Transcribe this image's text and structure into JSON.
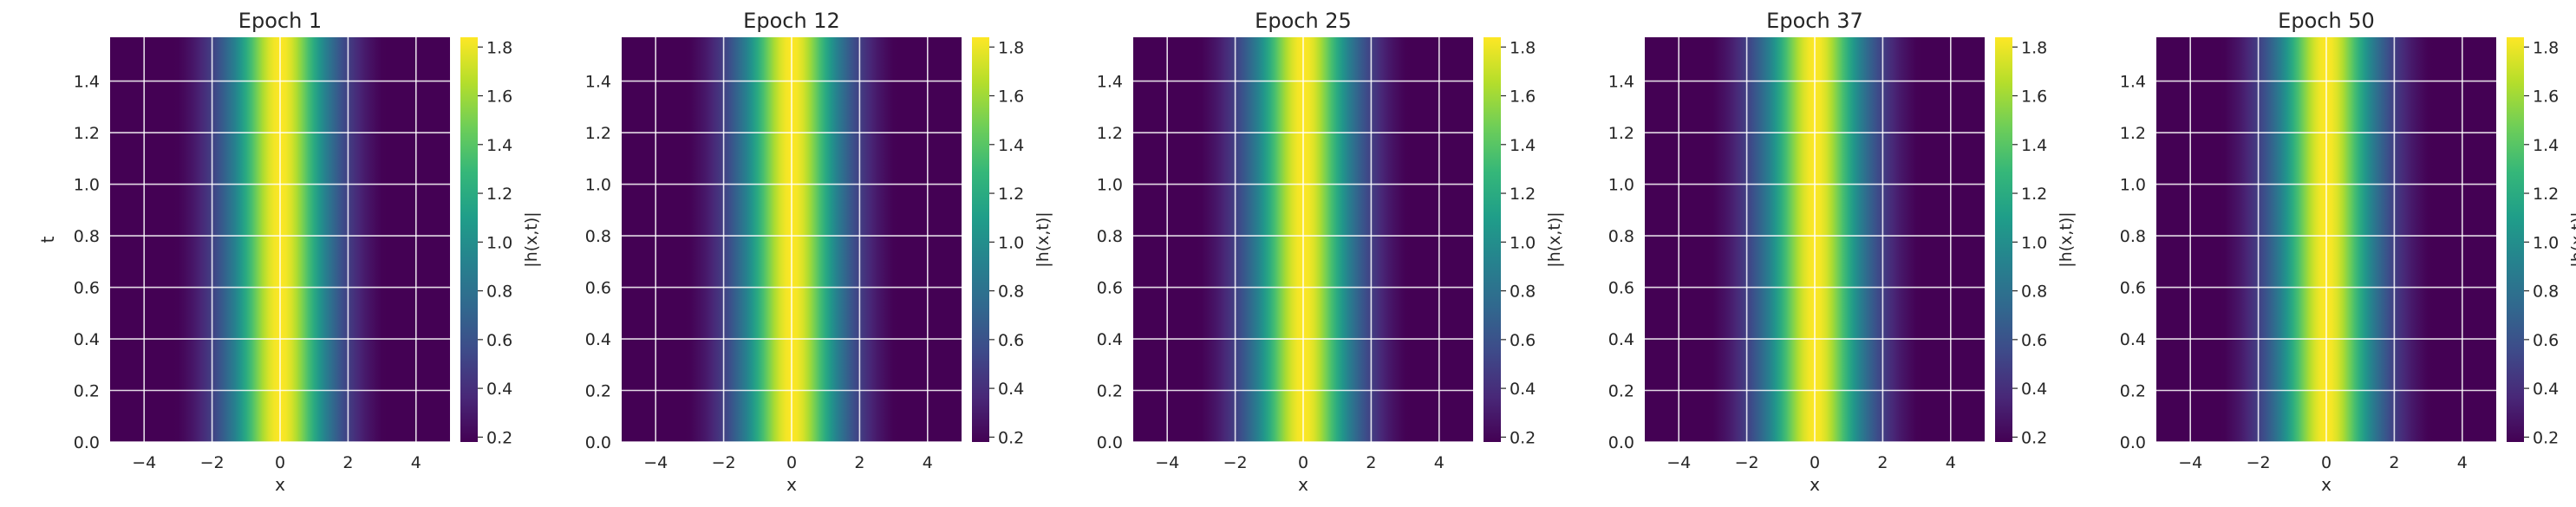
{
  "chart_data": [
    {
      "type": "heatmap",
      "title": "Epoch 1",
      "xlabel": "x",
      "ylabel": "t",
      "xlim": [
        -5,
        5
      ],
      "ylim": [
        0,
        1.57
      ],
      "xticks": [
        "−4",
        "−2",
        "0",
        "2",
        "4"
      ],
      "yticks": [
        "0.0",
        "0.2",
        "0.4",
        "0.6",
        "0.8",
        "1.0",
        "1.2",
        "1.4"
      ],
      "colorbar": {
        "label": "|h(x,t)|",
        "range": [
          0.18,
          1.84
        ],
        "ticks": [
          "0.2",
          "0.4",
          "0.6",
          "0.8",
          "1.0",
          "1.2",
          "1.4",
          "1.6",
          "1.8"
        ]
      },
      "field": {
        "form": "A*sech(B*x)",
        "peak": 1.84,
        "width": 1.0,
        "x_center": 0
      }
    },
    {
      "type": "heatmap",
      "title": "Epoch 12",
      "xlabel": "x",
      "ylabel": "",
      "xlim": [
        -5,
        5
      ],
      "ylim": [
        0,
        1.57
      ],
      "xticks": [
        "−4",
        "−2",
        "0",
        "2",
        "4"
      ],
      "yticks": [
        "0.0",
        "0.2",
        "0.4",
        "0.6",
        "0.8",
        "1.0",
        "1.2",
        "1.4"
      ],
      "colorbar": {
        "label": "|h(x,t)|",
        "range": [
          0.18,
          1.84
        ],
        "ticks": [
          "0.2",
          "0.4",
          "0.6",
          "0.8",
          "1.0",
          "1.2",
          "1.4",
          "1.6",
          "1.8"
        ]
      },
      "field": {
        "form": "A*sech(B*x)",
        "peak": 1.84,
        "width": 1.0,
        "x_center": 0
      }
    },
    {
      "type": "heatmap",
      "title": "Epoch 25",
      "xlabel": "x",
      "ylabel": "",
      "xlim": [
        -5,
        5
      ],
      "ylim": [
        0,
        1.57
      ],
      "xticks": [
        "−4",
        "−2",
        "0",
        "2",
        "4"
      ],
      "yticks": [
        "0.0",
        "0.2",
        "0.4",
        "0.6",
        "0.8",
        "1.0",
        "1.2",
        "1.4"
      ],
      "colorbar": {
        "label": "|h(x,t)|",
        "range": [
          0.18,
          1.84
        ],
        "ticks": [
          "0.2",
          "0.4",
          "0.6",
          "0.8",
          "1.0",
          "1.2",
          "1.4",
          "1.6",
          "1.8"
        ]
      },
      "field": {
        "form": "A*sech(B*x)",
        "peak": 1.84,
        "width": 1.0,
        "x_center": 0
      }
    },
    {
      "type": "heatmap",
      "title": "Epoch 37",
      "xlabel": "x",
      "ylabel": "",
      "xlim": [
        -5,
        5
      ],
      "ylim": [
        0,
        1.57
      ],
      "xticks": [
        "−4",
        "−2",
        "0",
        "2",
        "4"
      ],
      "yticks": [
        "0.0",
        "0.2",
        "0.4",
        "0.6",
        "0.8",
        "1.0",
        "1.2",
        "1.4"
      ],
      "colorbar": {
        "label": "|h(x,t)|",
        "range": [
          0.18,
          1.84
        ],
        "ticks": [
          "0.2",
          "0.4",
          "0.6",
          "0.8",
          "1.0",
          "1.2",
          "1.4",
          "1.6",
          "1.8"
        ]
      },
      "field": {
        "form": "A*sech(B*x)",
        "peak": 1.84,
        "width": 1.0,
        "x_center": 0
      }
    },
    {
      "type": "heatmap",
      "title": "Epoch 50",
      "xlabel": "x",
      "ylabel": "",
      "xlim": [
        -5,
        5
      ],
      "ylim": [
        0,
        1.57
      ],
      "xticks": [
        "−4",
        "−2",
        "0",
        "2",
        "4"
      ],
      "yticks": [
        "0.0",
        "0.2",
        "0.4",
        "0.6",
        "0.8",
        "1.0",
        "1.2",
        "1.4"
      ],
      "colorbar": {
        "label": "|h(x,t)|",
        "range": [
          0.18,
          1.84
        ],
        "ticks": [
          "0.2",
          "0.4",
          "0.6",
          "0.8",
          "1.0",
          "1.2",
          "1.4",
          "1.6",
          "1.8"
        ]
      },
      "field": {
        "form": "A*sech(B*x)",
        "peak": 1.84,
        "width": 1.0,
        "x_center": 0
      }
    }
  ],
  "colormap": "viridis",
  "colormap_stops": [
    "#440154",
    "#482878",
    "#3e4a89",
    "#31688e",
    "#26828e",
    "#1f9e89",
    "#35b779",
    "#6ece58",
    "#b5de2b",
    "#fde725"
  ],
  "grid": true,
  "grid_color": "#ffffff"
}
